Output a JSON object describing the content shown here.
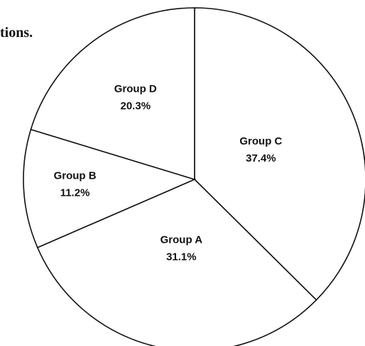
{
  "chart_data": {
    "type": "pie",
    "caption": "tions.",
    "categories": [
      "Group C",
      "Group A",
      "Group B",
      "Group D"
    ],
    "values": [
      37.4,
      31.1,
      11.2,
      20.3
    ],
    "value_labels": [
      "37.4%",
      "31.1%",
      "11.2%",
      "20.3%"
    ],
    "color": "#ffffff"
  }
}
